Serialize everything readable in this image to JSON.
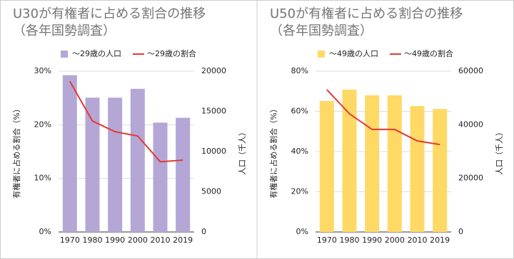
{
  "chart_data": [
    {
      "type": "combo",
      "title": "U30が有権者に占める割合の推移",
      "subtitle": "（各年国勢調査）",
      "y_label": "有権者に占める割合（%）",
      "y2_label": "人口（千人）",
      "categories": [
        "1970",
        "1980",
        "1990",
        "2000",
        "2010",
        "2019"
      ],
      "series": [
        {
          "name": "〜29歳の人口",
          "type": "bar",
          "axis": "y2",
          "color": "#b4a7d6",
          "values": [
            19500,
            16700,
            16700,
            17800,
            13600,
            14200
          ]
        },
        {
          "name": "〜29歳の割合",
          "type": "line",
          "axis": "y",
          "color": "#e53935",
          "values": [
            28.1,
            20.7,
            18.7,
            17.9,
            13.1,
            13.4
          ]
        }
      ],
      "ylim": [
        0,
        30
      ],
      "yticks": [
        {
          "value": 0,
          "label": "0%"
        },
        {
          "value": 10,
          "label": "10%"
        },
        {
          "value": 20,
          "label": "20%"
        },
        {
          "value": 30,
          "label": "30%"
        }
      ],
      "y2lim": [
        0,
        20000
      ],
      "y2ticks": [
        0,
        5000,
        10000,
        15000,
        20000
      ],
      "grid": true
    },
    {
      "type": "combo",
      "title": "U50が有権者に占める割合の推移",
      "subtitle": "（各年国勢調査）",
      "y_label": "有権者に占める割合（%）",
      "y2_label": "人口（千人）",
      "categories": [
        "1970",
        "1980",
        "1990",
        "2000",
        "2010",
        "2019"
      ],
      "series": [
        {
          "name": "〜49歳の人口",
          "type": "bar",
          "axis": "y2",
          "color": "#ffd966",
          "values": [
            48900,
            53100,
            51000,
            51000,
            47000,
            45900
          ]
        },
        {
          "name": "〜49歳の割合",
          "type": "line",
          "axis": "y",
          "color": "#e53935",
          "values": [
            70.8,
            58.8,
            51.0,
            51.0,
            45.3,
            43.5
          ]
        }
      ],
      "ylim": [
        0,
        80
      ],
      "yticks": [
        {
          "value": 0,
          "label": "0%"
        },
        {
          "value": 20,
          "label": "20%"
        },
        {
          "value": 40,
          "label": "40%"
        },
        {
          "value": 60,
          "label": "60%"
        },
        {
          "value": 80,
          "label": "80%"
        }
      ],
      "y2lim": [
        0,
        60000
      ],
      "y2ticks": [
        0,
        20000,
        40000,
        60000
      ],
      "grid": true
    }
  ]
}
